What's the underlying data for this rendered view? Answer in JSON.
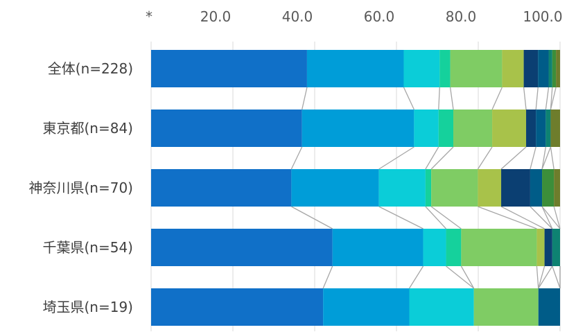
{
  "chart_data": {
    "type": "bar",
    "orientation": "horizontal",
    "stacked": true,
    "axis_title": "*",
    "xlim": [
      0,
      100
    ],
    "ticks": [
      "20.0",
      "40.0",
      "60.0",
      "80.0",
      "100.0"
    ],
    "tick_values": [
      20,
      40,
      60,
      80,
      100
    ],
    "categories": [
      "全体(n=228)",
      "東京都(n=84)",
      "神奈川県(n=70)",
      "千葉県(n=54)",
      "埼玉県(n=19)"
    ],
    "series": [
      {
        "color": "#1070C8",
        "values": [
          38.2,
          36.9,
          34.3,
          44.4,
          42.1
        ]
      },
      {
        "color": "#009DD8",
        "values": [
          23.7,
          27.4,
          21.4,
          22.2,
          21.1
        ]
      },
      {
        "color": "#0BCDD8",
        "values": [
          8.8,
          6.0,
          11.4,
          5.6,
          15.8
        ]
      },
      {
        "color": "#15D19C",
        "values": [
          2.6,
          3.6,
          1.4,
          3.7,
          0.0
        ]
      },
      {
        "color": "#7FCC64",
        "values": [
          12.7,
          9.5,
          11.4,
          18.5,
          15.8
        ]
      },
      {
        "color": "#A8C24A",
        "values": [
          5.3,
          8.3,
          5.7,
          1.9,
          0.0
        ]
      },
      {
        "color": "#0B3F72",
        "values": [
          3.5,
          2.4,
          7.1,
          1.9,
          0.0
        ]
      },
      {
        "color": "#005C88",
        "values": [
          2.6,
          2.4,
          2.9,
          0.0,
          5.3
        ]
      },
      {
        "color": "#0E8272",
        "values": [
          0.9,
          1.2,
          0.0,
          1.9,
          0.0
        ]
      },
      {
        "color": "#3C8E3A",
        "values": [
          0.9,
          0.0,
          2.9,
          0.0,
          0.0
        ]
      },
      {
        "color": "#6E7D2C",
        "values": [
          1.0,
          2.3,
          1.5,
          0.0,
          0.0
        ]
      }
    ]
  }
}
